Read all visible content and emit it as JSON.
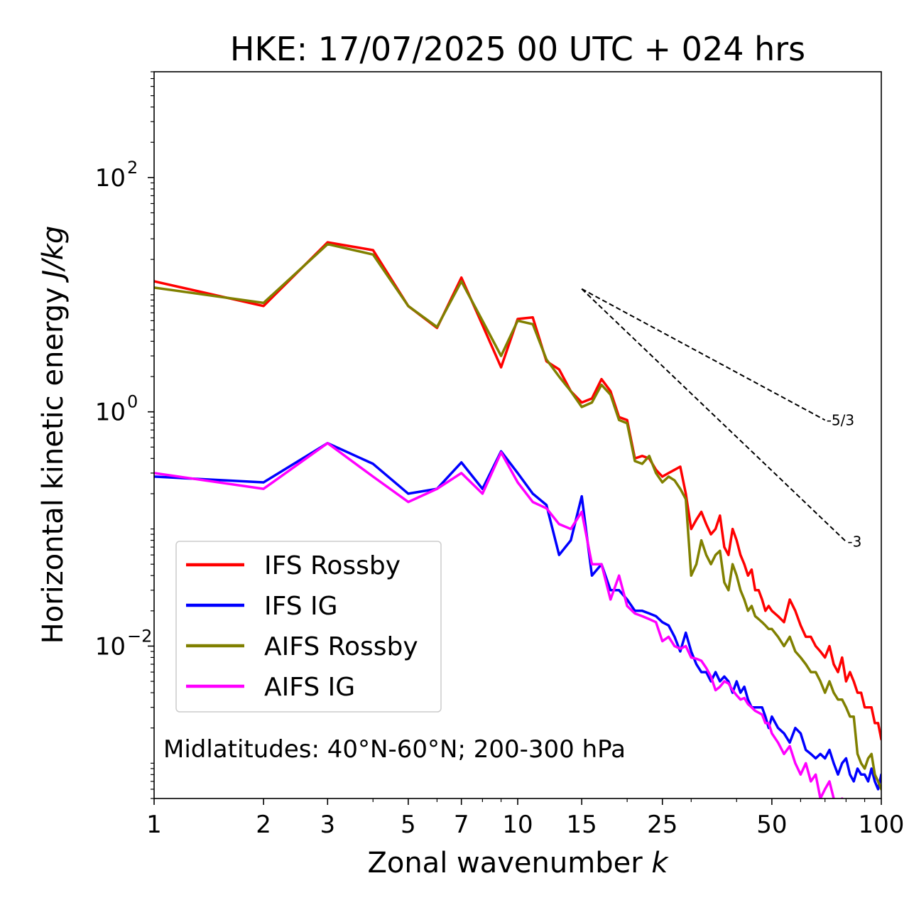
{
  "chart_data": {
    "type": "line",
    "title": "HKE: 17/07/2025 00 UTC + 024 hrs",
    "xlabel_text": "Zonal wavenumber ",
    "xlabel_var": "k",
    "ylabel_text": "Horizontal kinetic energy ",
    "ylabel_unit": "J/kg",
    "x_scale": "log",
    "y_scale": "log",
    "xlim": [
      1,
      100
    ],
    "ylim": [
      0.0005,
      800
    ],
    "x_ticks": [
      {
        "value": 1,
        "label": "1"
      },
      {
        "value": 2,
        "label": "2"
      },
      {
        "value": 3,
        "label": "3"
      },
      {
        "value": 5,
        "label": "5"
      },
      {
        "value": 7,
        "label": "7"
      },
      {
        "value": 10,
        "label": "10"
      },
      {
        "value": 15,
        "label": "15"
      },
      {
        "value": 25,
        "label": "25"
      },
      {
        "value": 50,
        "label": "50"
      },
      {
        "value": 100,
        "label": "100"
      }
    ],
    "y_ticks": [
      {
        "value": 100,
        "base": "10",
        "exp": "2"
      },
      {
        "value": 1,
        "base": "10",
        "exp": "0"
      },
      {
        "value": 0.01,
        "base": "10",
        "exp": "−2"
      }
    ],
    "annotation": "Midlatitudes: 40°N-60°N; 200-300 hPa",
    "legend_position": "lower-left",
    "reference_lines": [
      {
        "label": "-5/3",
        "x": [
          15,
          70
        ],
        "y": [
          11.2,
          0.85
        ]
      },
      {
        "label": "-3",
        "x": [
          15,
          80
        ],
        "y": [
          11.2,
          0.078
        ]
      }
    ],
    "series": [
      {
        "name": "IFS Rossby",
        "color": "#ff0000",
        "x": [
          1,
          2,
          3,
          4,
          5,
          6,
          7,
          8,
          9,
          10,
          11,
          12,
          13,
          14,
          15,
          16,
          17,
          18,
          19,
          20,
          21,
          22,
          23,
          24,
          25,
          26,
          27,
          28,
          29,
          30,
          31,
          32,
          33,
          34,
          35,
          36,
          37,
          38,
          39,
          40,
          41,
          42,
          43,
          44,
          45,
          46,
          47,
          48,
          49,
          50,
          52,
          54,
          56,
          58,
          60,
          62,
          64,
          66,
          68,
          70,
          72,
          74,
          76,
          78,
          80,
          82,
          84,
          86,
          88,
          90,
          92,
          94,
          96,
          98,
          100
        ],
        "y": [
          13,
          8,
          28,
          24,
          8,
          5.2,
          14,
          5.5,
          2.4,
          6.2,
          6.4,
          2.7,
          2.3,
          1.5,
          1.2,
          1.3,
          1.9,
          1.5,
          0.9,
          0.85,
          0.4,
          0.42,
          0.4,
          0.32,
          0.28,
          0.3,
          0.32,
          0.34,
          0.2,
          0.1,
          0.12,
          0.14,
          0.11,
          0.09,
          0.1,
          0.13,
          0.07,
          0.06,
          0.1,
          0.08,
          0.06,
          0.05,
          0.04,
          0.045,
          0.03,
          0.03,
          0.025,
          0.02,
          0.022,
          0.02,
          0.018,
          0.016,
          0.025,
          0.02,
          0.015,
          0.012,
          0.012,
          0.01,
          0.009,
          0.008,
          0.01,
          0.007,
          0.006,
          0.008,
          0.005,
          0.006,
          0.005,
          0.004,
          0.004,
          0.003,
          0.003,
          0.003,
          0.0022,
          0.0022,
          0.0016
        ]
      },
      {
        "name": "IFS IG",
        "color": "#0000ff",
        "x": [
          1,
          2,
          3,
          4,
          5,
          6,
          7,
          8,
          9,
          10,
          11,
          12,
          13,
          14,
          15,
          16,
          17,
          18,
          19,
          20,
          21,
          22,
          23,
          24,
          25,
          26,
          27,
          28,
          29,
          30,
          31,
          32,
          33,
          34,
          35,
          36,
          37,
          38,
          39,
          40,
          41,
          42,
          43,
          44,
          45,
          46,
          47,
          48,
          49,
          50,
          52,
          54,
          56,
          58,
          60,
          62,
          64,
          66,
          68,
          70,
          72,
          74,
          76,
          78,
          80,
          82,
          84,
          86,
          88,
          90,
          92,
          94,
          96,
          98,
          100
        ],
        "y": [
          0.28,
          0.25,
          0.54,
          0.36,
          0.2,
          0.22,
          0.37,
          0.22,
          0.46,
          0.3,
          0.2,
          0.16,
          0.06,
          0.08,
          0.19,
          0.04,
          0.05,
          0.03,
          0.03,
          0.025,
          0.02,
          0.02,
          0.019,
          0.018,
          0.016,
          0.015,
          0.012,
          0.009,
          0.013,
          0.009,
          0.007,
          0.006,
          0.006,
          0.005,
          0.006,
          0.005,
          0.0055,
          0.005,
          0.004,
          0.005,
          0.004,
          0.0045,
          0.0035,
          0.003,
          0.003,
          0.003,
          0.003,
          0.0025,
          0.002,
          0.0025,
          0.002,
          0.0018,
          0.0015,
          0.002,
          0.0018,
          0.0013,
          0.0012,
          0.0011,
          0.0012,
          0.0011,
          0.0013,
          0.001,
          0.0008,
          0.001,
          0.0011,
          0.0008,
          0.0007,
          0.0009,
          0.0008,
          0.0008,
          0.0007,
          0.0009,
          0.0007,
          0.0006,
          0.0008
        ]
      },
      {
        "name": "AIFS Rossby",
        "color": "#808000",
        "x": [
          1,
          2,
          3,
          4,
          5,
          6,
          7,
          8,
          9,
          10,
          11,
          12,
          13,
          14,
          15,
          16,
          17,
          18,
          19,
          20,
          21,
          22,
          23,
          24,
          25,
          26,
          27,
          28,
          29,
          30,
          31,
          32,
          33,
          34,
          35,
          36,
          37,
          38,
          39,
          40,
          41,
          42,
          43,
          44,
          45,
          46,
          47,
          48,
          49,
          50,
          52,
          54,
          56,
          58,
          60,
          62,
          64,
          66,
          68,
          70,
          72,
          74,
          76,
          78,
          80,
          82,
          84,
          86,
          88,
          90,
          92,
          94,
          96,
          98,
          100
        ],
        "y": [
          11.5,
          8.5,
          27,
          22,
          8,
          5.3,
          13,
          6,
          3,
          6,
          5.6,
          2.8,
          2,
          1.5,
          1.1,
          1.2,
          1.7,
          1.4,
          0.85,
          0.8,
          0.38,
          0.36,
          0.42,
          0.3,
          0.25,
          0.28,
          0.26,
          0.22,
          0.18,
          0.04,
          0.05,
          0.08,
          0.06,
          0.05,
          0.06,
          0.065,
          0.035,
          0.03,
          0.05,
          0.04,
          0.03,
          0.025,
          0.02,
          0.022,
          0.018,
          0.017,
          0.016,
          0.015,
          0.014,
          0.014,
          0.012,
          0.01,
          0.012,
          0.009,
          0.008,
          0.007,
          0.006,
          0.006,
          0.005,
          0.004,
          0.005,
          0.004,
          0.0035,
          0.0035,
          0.003,
          0.0025,
          0.0025,
          0.0012,
          0.001,
          0.0009,
          0.0011,
          0.0012,
          0.0008,
          0.0007,
          0.0006
        ]
      },
      {
        "name": "AIFS IG",
        "color": "#ff00ff",
        "x": [
          1,
          2,
          3,
          4,
          5,
          6,
          7,
          8,
          9,
          10,
          11,
          12,
          13,
          14,
          15,
          16,
          17,
          18,
          19,
          20,
          21,
          22,
          23,
          24,
          25,
          26,
          27,
          28,
          29,
          30,
          31,
          32,
          33,
          34,
          35,
          36,
          37,
          38,
          39,
          40,
          41,
          42,
          43,
          44,
          45,
          46,
          47,
          48,
          49,
          50,
          52,
          54,
          56,
          58,
          60,
          62,
          64,
          66,
          68,
          70,
          72,
          74,
          76,
          78,
          80
        ],
        "y": [
          0.3,
          0.22,
          0.54,
          0.28,
          0.17,
          0.22,
          0.3,
          0.2,
          0.45,
          0.25,
          0.17,
          0.15,
          0.11,
          0.1,
          0.14,
          0.05,
          0.05,
          0.025,
          0.04,
          0.022,
          0.019,
          0.018,
          0.017,
          0.016,
          0.011,
          0.012,
          0.01,
          0.0095,
          0.01,
          0.008,
          0.0078,
          0.0075,
          0.0065,
          0.0055,
          0.0042,
          0.0045,
          0.005,
          0.0048,
          0.0042,
          0.0038,
          0.0035,
          0.0036,
          0.0032,
          0.003,
          0.0028,
          0.0027,
          0.0026,
          0.0022,
          0.0022,
          0.0018,
          0.0015,
          0.0012,
          0.0014,
          0.001,
          0.0008,
          0.001,
          0.0007,
          0.0008,
          0.0005,
          0.0006,
          0.0007,
          0.0005,
          0.0004,
          0.0005,
          0.00045
        ]
      }
    ]
  }
}
